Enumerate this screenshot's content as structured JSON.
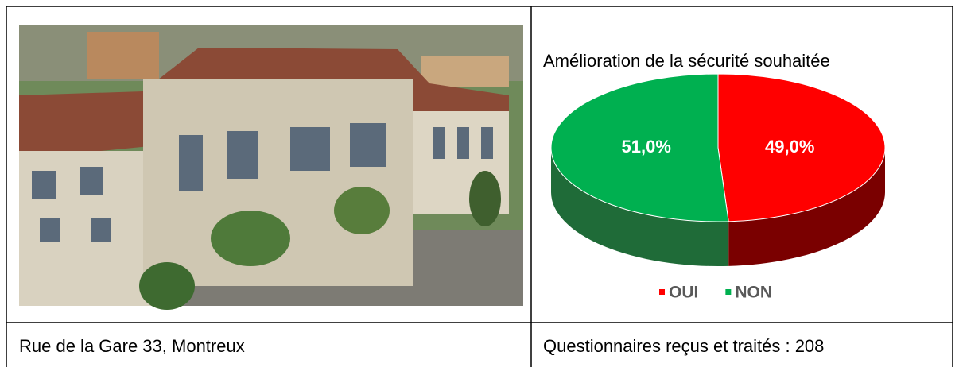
{
  "table": {
    "rows": [
      [
        "",
        ""
      ],
      [
        "Rue de la Gare 33, Montreux",
        "Questionnaires reçus et traités : 208"
      ]
    ],
    "chart": {
      "type": "pie",
      "title": "Amélioration de la sécurité souhaitée",
      "categories": [
        "OUI",
        "NON"
      ],
      "values": [
        49.0,
        51.0
      ],
      "value_labels": [
        "49,0%",
        "51,0%"
      ],
      "colors": [
        "#ff0000",
        "#00b050"
      ],
      "side_colors": [
        "#7a0000",
        "#1f6b38"
      ],
      "legend": "bottom"
    }
  }
}
